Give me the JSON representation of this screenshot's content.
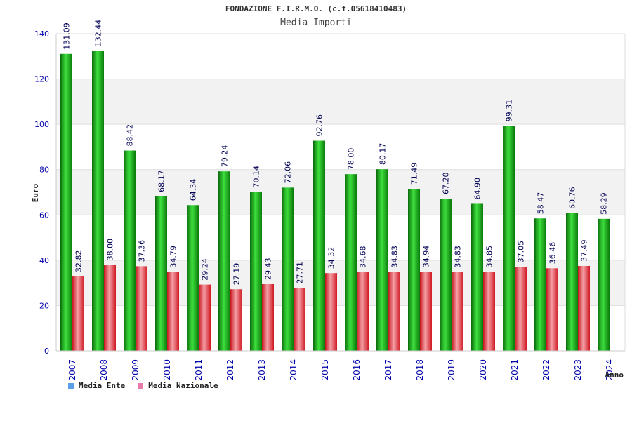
{
  "header": {
    "title": "FONDAZIONE F.I.R.M.O. (c.f.05618410483)",
    "subtitle": "Media Importi"
  },
  "colors": {
    "ente": "#18b818",
    "nazionale": "#e8303a",
    "legend_ente": "#5aa0e8",
    "legend_nazionale": "#e87aa8",
    "axis_text": "#0000aa",
    "band": "#f2f2f2",
    "grid": "#dddddd"
  },
  "legend": {
    "ente_label": "Media Ente",
    "nazionale_label": "Media Nazionale"
  },
  "chart_data": {
    "type": "bar",
    "title": "FONDAZIONE F.I.R.M.O. (c.f.05618410483)",
    "subtitle": "Media Importi",
    "xlabel": "Anno",
    "ylabel": "Euro",
    "ylim": [
      0,
      140
    ],
    "yticks": [
      0,
      20,
      40,
      60,
      80,
      100,
      120,
      140
    ],
    "grid": true,
    "legend_position": "bottom-left",
    "categories": [
      "2007",
      "2008",
      "2009",
      "2010",
      "2011",
      "2012",
      "2013",
      "2014",
      "2015",
      "2016",
      "2017",
      "2018",
      "2019",
      "2020",
      "2021",
      "2022",
      "2023",
      "2024"
    ],
    "series": [
      {
        "name": "Media Ente",
        "values": [
          131.09,
          132.44,
          88.42,
          68.17,
          64.34,
          79.24,
          70.14,
          72.06,
          92.76,
          78.0,
          80.17,
          71.49,
          67.2,
          64.9,
          99.31,
          58.47,
          60.76,
          58.29
        ],
        "labels": [
          "131.09",
          "132.44",
          "88.42",
          "68.17",
          "64.34",
          "79.24",
          "70.14",
          "72.06",
          "92.76",
          "78.00",
          "80.17",
          "71.49",
          "67.20",
          "64.90",
          "99.31",
          "58.47",
          "60.76",
          "58.29"
        ]
      },
      {
        "name": "Media Nazionale",
        "values": [
          32.82,
          38.0,
          37.36,
          34.79,
          29.24,
          27.19,
          29.43,
          27.71,
          34.32,
          34.68,
          34.83,
          34.94,
          34.83,
          34.85,
          37.05,
          36.46,
          37.49,
          null
        ],
        "labels": [
          "32.82",
          "38.00",
          "37.36",
          "34.79",
          "29.24",
          "27.19",
          "29.43",
          "27.71",
          "34.32",
          "34.68",
          "34.83",
          "34.94",
          "34.83",
          "34.85",
          "37.05",
          "36.46",
          "37.49",
          null
        ]
      }
    ]
  }
}
